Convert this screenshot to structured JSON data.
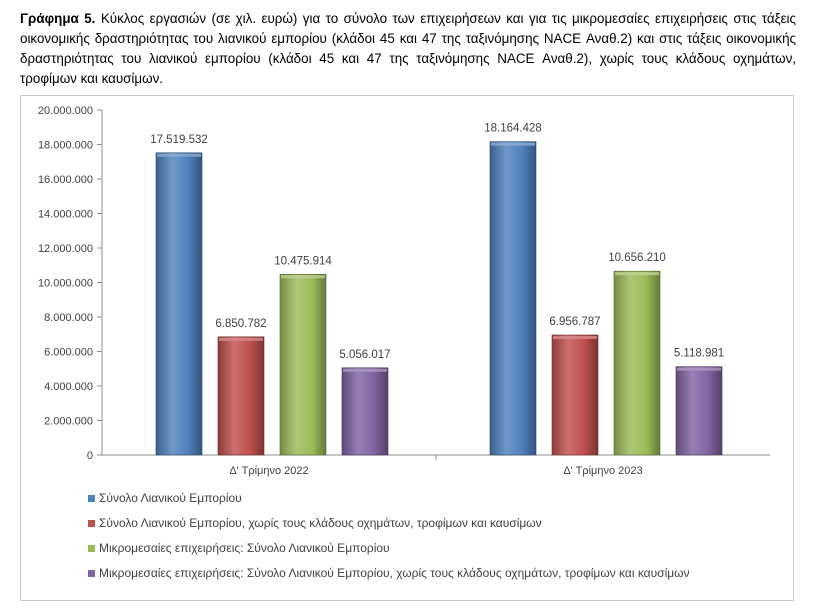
{
  "caption": {
    "label": "Γράφημα 5.",
    "text": "Κύκλος εργασιών (σε χιλ. ευρώ) για το σύνολο των επιχειρήσεων και για τις μικρομεσαίες επιχειρήσεις στις τάξεις οικονομικής δραστηριότητας του λιανικού εμπορίου (κλάδοι 45 και 47 της ταξινόμησης NACE Αναθ.2) και στις τάξεις οικονομικής δραστηριότητας του λιανικού εμπορίου (κλάδοι 45 και 47 της ταξινόμησης NACE Αναθ.2), χωρίς τους κλάδους οχημάτων, τροφίμων και καυσίμων."
  },
  "chart_data": {
    "type": "bar",
    "categories": [
      "Δ' Τρίμηνο 2022",
      "Δ' Τρίμηνο 2023"
    ],
    "series": [
      {
        "name": "Σύνολο Λιανικού Εμπορίου",
        "values": [
          17519532,
          18164428
        ],
        "labels": [
          "17.519.532",
          "18.164.428"
        ],
        "color": "#4f81bd"
      },
      {
        "name": "Σύνολο Λιανικού Εμπορίου, χωρίς τους κλάδους οχημάτων, τροφίμων και καυσίμων",
        "values": [
          6850782,
          6956787
        ],
        "labels": [
          "6.850.782",
          "6.956.787"
        ],
        "color": "#c0504d"
      },
      {
        "name": "Μικρομεσαίες επιχειρήσεις: Σύνολο Λιανικού Εμπορίου",
        "values": [
          10475914,
          10656210
        ],
        "labels": [
          "10.475.914",
          "10.656.210"
        ],
        "color": "#9bbb59"
      },
      {
        "name": "Μικρομεσαίες επιχειρήσεις: Σύνολο Λιανικού Εμπορίου, χωρίς τους κλάδους οχημάτων, τροφίμων και καυσίμων",
        "values": [
          5056017,
          5118981
        ],
        "labels": [
          "5.056.017",
          "5.118.981"
        ],
        "color": "#8064a2"
      }
    ],
    "ylim": [
      0,
      20000000
    ],
    "yticks": [
      "0",
      "2.000.000",
      "4.000.000",
      "6.000.000",
      "8.000.000",
      "10.000.000",
      "12.000.000",
      "14.000.000",
      "16.000.000",
      "18.000.000",
      "20.000.000"
    ],
    "grid": false,
    "legend_position": "bottom"
  }
}
